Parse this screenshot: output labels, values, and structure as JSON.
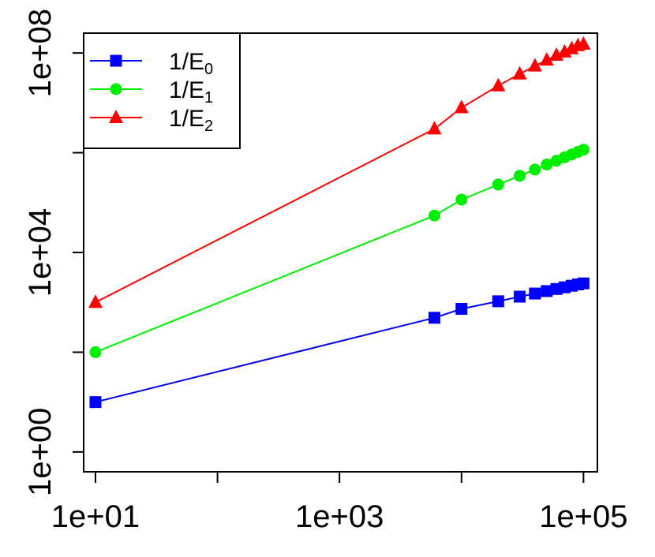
{
  "chart_data": {
    "type": "line",
    "x_scale": "log",
    "y_scale": "log",
    "xlim": [
      8,
      130000
    ],
    "ylim": [
      0.4,
      250000000
    ],
    "x_ticks": [
      {
        "value": 10,
        "label": "1e+01"
      },
      {
        "value": 100,
        "label": ""
      },
      {
        "value": 1000,
        "label": "1e+03"
      },
      {
        "value": 10000,
        "label": ""
      },
      {
        "value": 100000,
        "label": "1e+05"
      }
    ],
    "y_ticks": [
      {
        "value": 1,
        "label": "1e+00"
      },
      {
        "value": 100,
        "label": ""
      },
      {
        "value": 10000,
        "label": "1e+04"
      },
      {
        "value": 1000000,
        "label": ""
      },
      {
        "value": 100000000,
        "label": "1e+08"
      }
    ],
    "grid": false,
    "legend_position": "top-left",
    "x": [
      10,
      6000,
      10000,
      20000,
      30000,
      40000,
      50000,
      60000,
      70000,
      80000,
      90000,
      100000
    ],
    "series": [
      {
        "name": "1/E0",
        "legend_main": "1/E",
        "legend_sub": "0",
        "color": "#0000ff",
        "marker": "square",
        "values": [
          10,
          490,
          740,
          1050,
          1300,
          1500,
          1680,
          1850,
          2000,
          2150,
          2290,
          2400
        ]
      },
      {
        "name": "1/E1",
        "legend_main": "1/E",
        "legend_sub": "1",
        "color": "#00ee00",
        "marker": "circle",
        "values": [
          100,
          55000,
          115000,
          230000,
          345000,
          460000,
          580000,
          690000,
          810000,
          920000,
          1040000,
          1150000
        ]
      },
      {
        "name": "1/E2",
        "legend_main": "1/E",
        "legend_sub": "2",
        "color": "#ff0000",
        "marker": "triangle",
        "values": [
          1000,
          3000000,
          8000000,
          22000000,
          38000000,
          55000000,
          72000000,
          90000000,
          105000000,
          122000000,
          140000000,
          150000000
        ]
      }
    ]
  }
}
